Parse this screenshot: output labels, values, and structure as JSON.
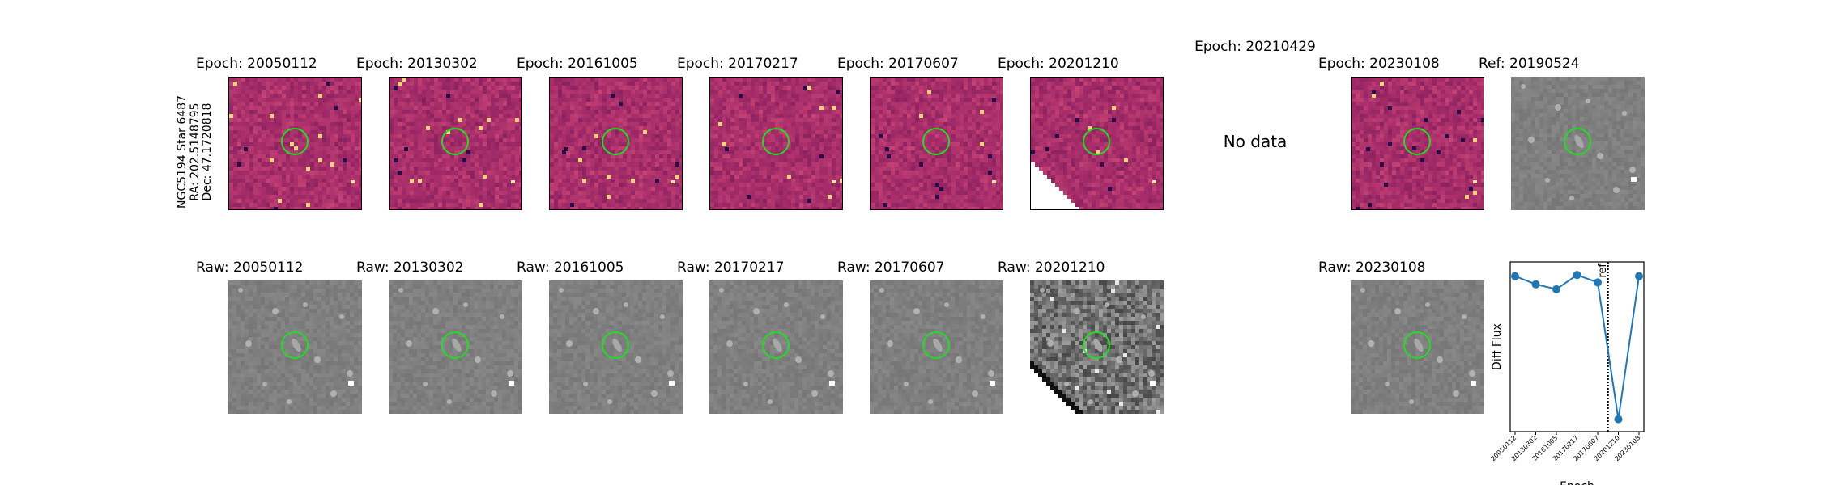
{
  "star_label": {
    "name": "NGC5194 Star 6487",
    "ra": "RA: 202.5148795",
    "dec": "Dec: 47.1720818"
  },
  "diff_row": [
    {
      "title": "Epoch: 20050112"
    },
    {
      "title": "Epoch: 20130302"
    },
    {
      "title": "Epoch: 20161005"
    },
    {
      "title": "Epoch: 20170217"
    },
    {
      "title": "Epoch: 20170607"
    },
    {
      "title": "Epoch: 20201210"
    }
  ],
  "missing_epoch": {
    "title": "Epoch: 20210429",
    "text": "No data"
  },
  "diff_last": {
    "title": "Epoch: 20230108"
  },
  "reference": {
    "title": "Ref: 20190524"
  },
  "raw_row": [
    {
      "title": "Raw: 20050112"
    },
    {
      "title": "Raw: 20130302"
    },
    {
      "title": "Raw: 20161005"
    },
    {
      "title": "Raw: 20170217"
    },
    {
      "title": "Raw: 20170607"
    },
    {
      "title": "Raw: 20201210"
    }
  ],
  "raw_last": {
    "title": "Raw: 20230108"
  },
  "colors": {
    "diff_map": "#a03c7a",
    "raw_map": "#888888",
    "aperture": "#22dd22",
    "series": "#1f77b4"
  },
  "chart_data": {
    "type": "line",
    "xlabel": "Epoch",
    "ylabel": "Diff Flux",
    "categories": [
      "20050112",
      "20130302",
      "20161005",
      "20170217",
      "20170607",
      "20201210",
      "20230108"
    ],
    "series": [
      {
        "values": [
          0.95,
          0.82,
          0.74,
          0.97,
          0.85,
          -1.35,
          0.95
        ]
      }
    ],
    "ylim": [
      -1.55,
      1.18
    ],
    "ref_line": {
      "label": "ref",
      "x_between": [
        "20170607",
        "20201210"
      ],
      "style": "dotted"
    }
  }
}
